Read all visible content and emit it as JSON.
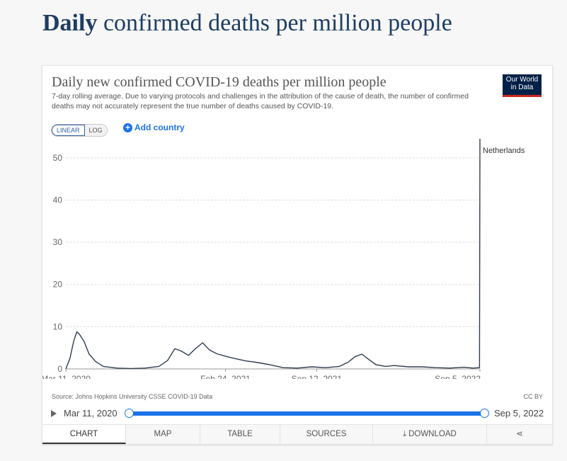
{
  "page": {
    "heading_bold": "Daily",
    "heading_rest": " confirmed deaths per million people"
  },
  "card": {
    "title": "Daily new confirmed COVID-19 deaths per million people",
    "subtitle": "7-day rolling average. Due to varying protocols and challenges in the attribution of the cause of death, the number of confirmed deaths may not accurately represent the true number of deaths caused by COVID-19.",
    "logo_line1": "Our World",
    "logo_line2": "in Data",
    "scale_linear": "LINEAR",
    "scale_log": "LOG",
    "add_country": "Add country",
    "source": "Source: Johns Hopkins University CSSE COVID-19 Data",
    "license": "CC BY"
  },
  "timeline": {
    "start_label": "Mar 11, 2020",
    "end_label": "Sep 5, 2022"
  },
  "tabs": [
    "CHART",
    "MAP",
    "TABLE",
    "SOURCES",
    "DOWNLOAD",
    ""
  ],
  "chart_data": {
    "type": "line",
    "title": "Daily new confirmed COVID-19 deaths per million people",
    "ylim": [
      0,
      50
    ],
    "yticks": [
      0,
      10,
      20,
      30,
      40,
      50
    ],
    "xlim": [
      "2020-03-11",
      "2022-09-05"
    ],
    "xtick_labels": [
      "Mar 11, 2020",
      "Feb 24, 2021",
      "Sep 12, 2021",
      "Sep 5, 2022"
    ],
    "xtick_dates": [
      "2020-03-11",
      "2021-02-24",
      "2021-09-12",
      "2022-09-05"
    ],
    "grid": true,
    "series": [
      {
        "name": "Netherlands",
        "color": "#2f3d50",
        "x": [
          "2020-03-11",
          "2020-03-20",
          "2020-03-28",
          "2020-04-04",
          "2020-04-10",
          "2020-04-20",
          "2020-05-01",
          "2020-05-15",
          "2020-06-01",
          "2020-07-01",
          "2020-08-01",
          "2020-09-01",
          "2020-10-01",
          "2020-10-20",
          "2020-11-05",
          "2020-11-20",
          "2020-12-05",
          "2020-12-20",
          "2021-01-05",
          "2021-01-20",
          "2021-02-05",
          "2021-02-24",
          "2021-03-15",
          "2021-04-10",
          "2021-05-01",
          "2021-06-01",
          "2021-07-01",
          "2021-08-01",
          "2021-09-01",
          "2021-10-01",
          "2021-11-01",
          "2021-11-20",
          "2021-12-05",
          "2021-12-20",
          "2022-01-05",
          "2022-01-20",
          "2022-02-10",
          "2022-03-01",
          "2022-04-01",
          "2022-05-01",
          "2022-06-01",
          "2022-07-01",
          "2022-08-01",
          "2022-08-20",
          "2022-09-04",
          "2022-09-05"
        ],
        "y": [
          0,
          2.5,
          6.5,
          8.8,
          8.2,
          6.5,
          3.5,
          1.8,
          0.6,
          0.2,
          0.1,
          0.2,
          0.6,
          2.0,
          4.8,
          4.2,
          3.2,
          4.8,
          6.2,
          4.5,
          3.6,
          3.0,
          2.5,
          1.9,
          1.6,
          1.0,
          0.3,
          0.2,
          0.5,
          0.3,
          0.6,
          1.6,
          2.9,
          3.5,
          2.2,
          1.0,
          0.6,
          0.8,
          0.5,
          0.5,
          0.3,
          0.2,
          0.4,
          0.2,
          0.3,
          54.5
        ]
      }
    ]
  }
}
